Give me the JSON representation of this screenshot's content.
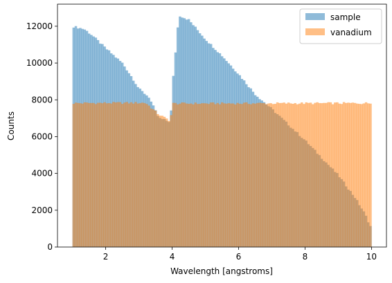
{
  "chart_data": {
    "type": "bar",
    "subtype": "overlaid-histogram",
    "xlabel": "Wavelength [angstroms]",
    "ylabel": "Counts",
    "xlim": [
      0.55,
      10.45
    ],
    "ylim": [
      0,
      13200
    ],
    "xticks": [
      2,
      4,
      6,
      8,
      10
    ],
    "yticks": [
      0,
      2000,
      4000,
      6000,
      8000,
      10000,
      12000
    ],
    "bins": {
      "start": 1.0,
      "end": 10.0,
      "count": 135
    },
    "grid": false,
    "legend": {
      "position": "top-right"
    },
    "series": [
      {
        "name": "sample",
        "color": "#1f77b4",
        "alpha": 0.5,
        "profile": [
          [
            1.0,
            12000
          ],
          [
            1.35,
            11850
          ],
          [
            1.6,
            11500
          ],
          [
            2.0,
            10800
          ],
          [
            2.5,
            10000
          ],
          [
            2.8,
            9200
          ],
          [
            3.0,
            8600
          ],
          [
            3.3,
            8150
          ],
          [
            3.6,
            7000
          ],
          [
            3.95,
            6800
          ],
          [
            4.0,
            8600
          ],
          [
            4.2,
            12600
          ],
          [
            4.5,
            12350
          ],
          [
            5.0,
            11300
          ],
          [
            5.5,
            10400
          ],
          [
            6.0,
            9400
          ],
          [
            6.5,
            8300
          ],
          [
            7.0,
            7500
          ],
          [
            8.0,
            5800
          ],
          [
            9.0,
            3900
          ],
          [
            9.5,
            2700
          ],
          [
            9.8,
            1800
          ],
          [
            10.0,
            1000
          ]
        ]
      },
      {
        "name": "vanadium",
        "color": "#ff7f0e",
        "alpha": 0.5,
        "profile": [
          [
            1.0,
            7820
          ],
          [
            3.2,
            7840
          ],
          [
            3.6,
            7200
          ],
          [
            3.95,
            6850
          ],
          [
            4.0,
            7800
          ],
          [
            10.0,
            7820
          ]
        ]
      }
    ]
  }
}
